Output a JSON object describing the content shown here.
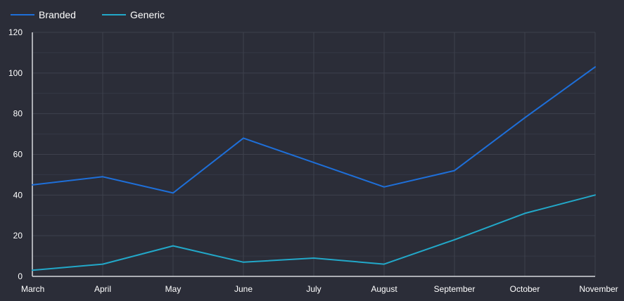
{
  "chart_data": {
    "type": "line",
    "title": "",
    "xlabel": "",
    "ylabel": "",
    "categories": [
      "March",
      "April",
      "May",
      "June",
      "July",
      "August",
      "September",
      "October",
      "November"
    ],
    "ylim": [
      0,
      120
    ],
    "yticks": [
      0,
      20,
      40,
      60,
      80,
      100,
      120
    ],
    "grid": true,
    "legend_position": "top-left",
    "series": [
      {
        "name": "Branded",
        "color": "#1e6fd9",
        "values": [
          45,
          49,
          41,
          68,
          56,
          44,
          52,
          78,
          103
        ]
      },
      {
        "name": "Generic",
        "color": "#22a8c9",
        "values": [
          3,
          6,
          15,
          7,
          9,
          6,
          18,
          31,
          40
        ]
      }
    ]
  }
}
